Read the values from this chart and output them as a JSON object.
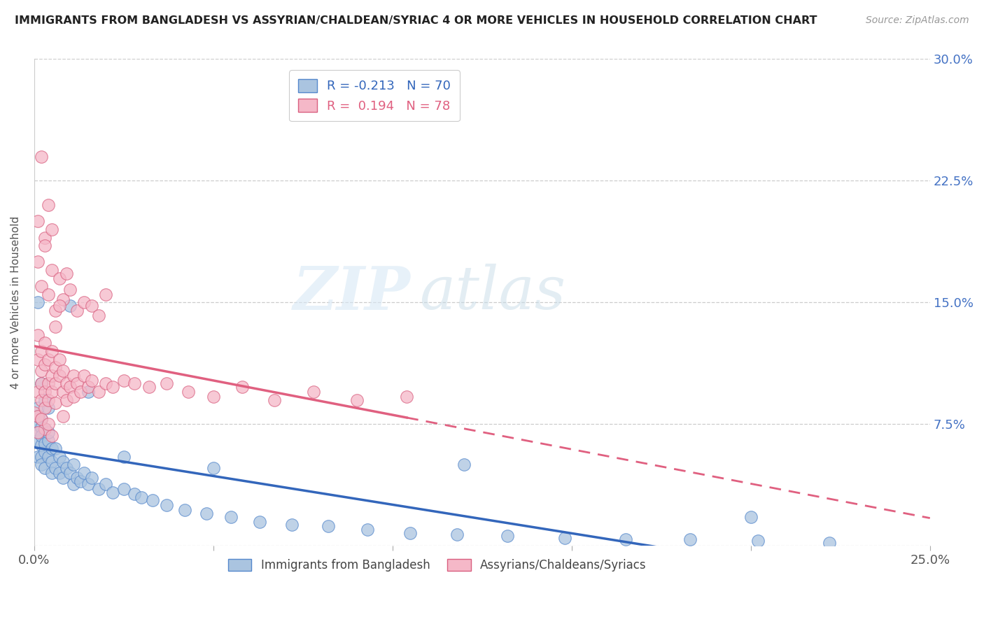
{
  "title": "IMMIGRANTS FROM BANGLADESH VS ASSYRIAN/CHALDEAN/SYRIAC 4 OR MORE VEHICLES IN HOUSEHOLD CORRELATION CHART",
  "source": "Source: ZipAtlas.com",
  "ylabel": "4 or more Vehicles in Household",
  "xlim": [
    0.0,
    0.25
  ],
  "ylim": [
    0.0,
    0.3
  ],
  "xticks": [
    0.0,
    0.05,
    0.1,
    0.15,
    0.2,
    0.25
  ],
  "yticks": [
    0.0,
    0.075,
    0.15,
    0.225,
    0.3
  ],
  "xtick_labels": [
    "0.0%",
    "",
    "",
    "",
    "",
    "25.0%"
  ],
  "ytick_labels": [
    "",
    "7.5%",
    "15.0%",
    "22.5%",
    "30.0%"
  ],
  "blue_R": -0.213,
  "blue_N": 70,
  "pink_R": 0.194,
  "pink_N": 78,
  "blue_color": "#aac4e0",
  "pink_color": "#f5b8c8",
  "blue_edge_color": "#5588cc",
  "pink_edge_color": "#d96080",
  "blue_line_color": "#3366bb",
  "pink_line_color": "#e06080",
  "watermark_zip": "ZIP",
  "watermark_atlas": "atlas",
  "legend_label_blue": "Immigrants from Bangladesh",
  "legend_label_pink": "Assyrians/Chaldeans/Syriacs",
  "blue_scatter_x": [
    0.0,
    0.001,
    0.001,
    0.001,
    0.001,
    0.001,
    0.002,
    0.002,
    0.002,
    0.002,
    0.002,
    0.002,
    0.003,
    0.003,
    0.003,
    0.003,
    0.004,
    0.004,
    0.004,
    0.005,
    0.005,
    0.005,
    0.006,
    0.006,
    0.007,
    0.007,
    0.008,
    0.008,
    0.009,
    0.01,
    0.011,
    0.011,
    0.012,
    0.013,
    0.014,
    0.015,
    0.016,
    0.018,
    0.02,
    0.022,
    0.025,
    0.028,
    0.03,
    0.033,
    0.037,
    0.042,
    0.048,
    0.055,
    0.063,
    0.072,
    0.082,
    0.093,
    0.105,
    0.118,
    0.132,
    0.148,
    0.165,
    0.183,
    0.202,
    0.222,
    0.001,
    0.002,
    0.003,
    0.004,
    0.01,
    0.015,
    0.025,
    0.05,
    0.12,
    0.2
  ],
  "blue_scatter_y": [
    0.075,
    0.085,
    0.07,
    0.055,
    0.065,
    0.08,
    0.078,
    0.062,
    0.073,
    0.055,
    0.068,
    0.05,
    0.072,
    0.058,
    0.063,
    0.048,
    0.065,
    0.055,
    0.07,
    0.06,
    0.052,
    0.045,
    0.06,
    0.048,
    0.055,
    0.045,
    0.052,
    0.042,
    0.048,
    0.045,
    0.05,
    0.038,
    0.042,
    0.04,
    0.045,
    0.038,
    0.042,
    0.035,
    0.038,
    0.033,
    0.035,
    0.032,
    0.03,
    0.028,
    0.025,
    0.022,
    0.02,
    0.018,
    0.015,
    0.013,
    0.012,
    0.01,
    0.008,
    0.007,
    0.006,
    0.005,
    0.004,
    0.004,
    0.003,
    0.002,
    0.15,
    0.1,
    0.09,
    0.085,
    0.148,
    0.095,
    0.055,
    0.048,
    0.05,
    0.018
  ],
  "pink_scatter_x": [
    0.0,
    0.001,
    0.001,
    0.001,
    0.001,
    0.002,
    0.002,
    0.002,
    0.002,
    0.003,
    0.003,
    0.003,
    0.003,
    0.004,
    0.004,
    0.004,
    0.005,
    0.005,
    0.005,
    0.006,
    0.006,
    0.006,
    0.007,
    0.007,
    0.008,
    0.008,
    0.009,
    0.009,
    0.01,
    0.011,
    0.011,
    0.012,
    0.013,
    0.014,
    0.015,
    0.016,
    0.018,
    0.02,
    0.022,
    0.025,
    0.028,
    0.032,
    0.037,
    0.043,
    0.05,
    0.058,
    0.067,
    0.078,
    0.09,
    0.104,
    0.001,
    0.002,
    0.003,
    0.004,
    0.005,
    0.006,
    0.007,
    0.008,
    0.009,
    0.01,
    0.012,
    0.014,
    0.016,
    0.018,
    0.02,
    0.001,
    0.002,
    0.003,
    0.004,
    0.005,
    0.006,
    0.007,
    0.003,
    0.005,
    0.002,
    0.004,
    0.001,
    0.008
  ],
  "pink_scatter_y": [
    0.082,
    0.095,
    0.115,
    0.13,
    0.08,
    0.1,
    0.12,
    0.09,
    0.108,
    0.095,
    0.112,
    0.085,
    0.125,
    0.1,
    0.09,
    0.115,
    0.105,
    0.095,
    0.12,
    0.1,
    0.11,
    0.088,
    0.105,
    0.115,
    0.095,
    0.108,
    0.1,
    0.09,
    0.098,
    0.105,
    0.092,
    0.1,
    0.095,
    0.105,
    0.098,
    0.102,
    0.095,
    0.1,
    0.098,
    0.102,
    0.1,
    0.098,
    0.1,
    0.095,
    0.092,
    0.098,
    0.09,
    0.095,
    0.09,
    0.092,
    0.175,
    0.16,
    0.19,
    0.155,
    0.17,
    0.145,
    0.165,
    0.152,
    0.168,
    0.158,
    0.145,
    0.15,
    0.148,
    0.142,
    0.155,
    0.2,
    0.24,
    0.185,
    0.21,
    0.195,
    0.135,
    0.148,
    0.072,
    0.068,
    0.078,
    0.075,
    0.07,
    0.08
  ]
}
